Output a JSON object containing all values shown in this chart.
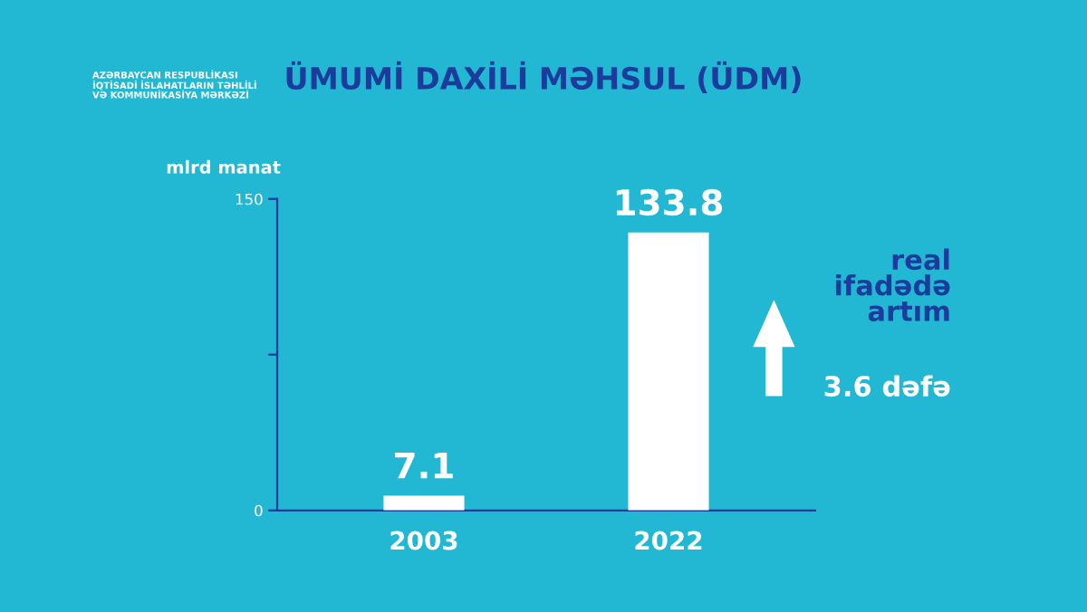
{
  "chart_data": {
    "type": "bar",
    "title": "ÜMUMİ DAXİLİ MƏHSUL (ÜDM)",
    "ylabel": "mlrd manat",
    "categories": [
      "2003",
      "2022"
    ],
    "values": [
      7.1,
      133.8
    ],
    "color": "#ffffff",
    "ylim": [
      0,
      150
    ],
    "yticks": [
      0,
      {
        "value": 75,
        "label": null
      },
      150
    ],
    "grid": false,
    "data_labels": true,
    "annotations": [
      "real\nifadədə\nartım",
      "3.6 dəfə",
      "AZƏRBAYCAN RESPUBLİKASI\nİQTİSADİ İSLAHATLARIN TƏHLİLİ\nVƏ KOMMUNİKASİYA MƏRKƏZİ"
    ]
  }
}
